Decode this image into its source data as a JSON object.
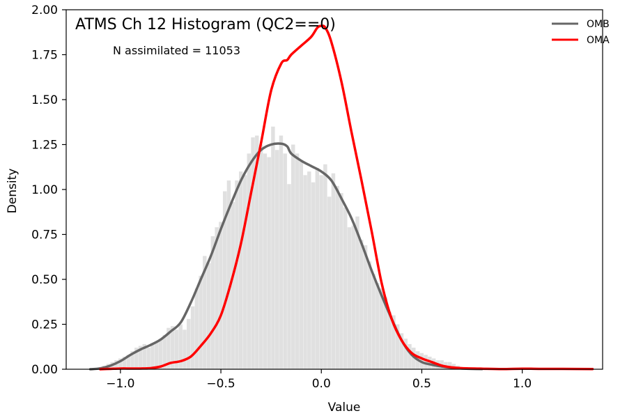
{
  "chart_data": {
    "type": "area",
    "title": "ATMS Ch 12 Histogram (QC2==0)",
    "annotation": "N assimilated = 11053",
    "xlabel": "Value",
    "ylabel": "Density",
    "xlim": [
      -1.27,
      1.4
    ],
    "ylim": [
      0,
      2.0
    ],
    "xticks": [
      -1.0,
      -0.5,
      0.0,
      0.5,
      1.0
    ],
    "xtick_labels": [
      "−1.0",
      "−0.5",
      "0.0",
      "0.5",
      "1.0"
    ],
    "yticks": [
      0,
      0.25,
      0.5,
      0.75,
      1.0,
      1.25,
      1.5,
      1.75,
      2.0
    ],
    "ytick_labels": [
      "0.00",
      "0.25",
      "0.50",
      "0.75",
      "1.00",
      "1.25",
      "1.50",
      "1.75",
      "2.00"
    ],
    "grid": false,
    "legend_position": "top-right",
    "histogram": {
      "color": "#e0e0e0",
      "bin_width": 0.02,
      "x": [
        -1.1,
        -1.08,
        -1.06,
        -1.04,
        -1.02,
        -1.0,
        -0.98,
        -0.96,
        -0.94,
        -0.92,
        -0.9,
        -0.88,
        -0.86,
        -0.84,
        -0.82,
        -0.8,
        -0.78,
        -0.76,
        -0.74,
        -0.72,
        -0.7,
        -0.68,
        -0.66,
        -0.64,
        -0.62,
        -0.6,
        -0.58,
        -0.56,
        -0.54,
        -0.52,
        -0.5,
        -0.48,
        -0.46,
        -0.44,
        -0.42,
        -0.4,
        -0.38,
        -0.36,
        -0.34,
        -0.32,
        -0.3,
        -0.28,
        -0.26,
        -0.24,
        -0.22,
        -0.2,
        -0.18,
        -0.16,
        -0.14,
        -0.12,
        -0.1,
        -0.08,
        -0.06,
        -0.04,
        -0.02,
        0.0,
        0.02,
        0.04,
        0.06,
        0.08,
        0.1,
        0.12,
        0.14,
        0.16,
        0.18,
        0.2,
        0.22,
        0.24,
        0.26,
        0.28,
        0.3,
        0.32,
        0.34,
        0.36,
        0.38,
        0.4,
        0.42,
        0.44,
        0.46,
        0.48,
        0.5,
        0.52,
        0.54,
        0.56,
        0.58,
        0.6,
        0.62,
        0.64,
        0.66,
        0.68,
        0.7
      ],
      "values": [
        0.01,
        0.02,
        0.03,
        0.04,
        0.05,
        0.06,
        0.07,
        0.08,
        0.1,
        0.12,
        0.13,
        0.14,
        0.12,
        0.14,
        0.15,
        0.17,
        0.19,
        0.23,
        0.24,
        0.22,
        0.25,
        0.22,
        0.28,
        0.35,
        0.45,
        0.52,
        0.63,
        0.59,
        0.74,
        0.79,
        0.82,
        0.99,
        1.05,
        0.93,
        1.05,
        1.1,
        1.08,
        1.2,
        1.29,
        1.3,
        1.25,
        1.2,
        1.18,
        1.35,
        1.22,
        1.3,
        1.2,
        1.03,
        1.25,
        1.2,
        1.16,
        1.08,
        1.1,
        1.04,
        1.12,
        1.08,
        1.14,
        0.96,
        1.09,
        1.02,
        0.98,
        0.9,
        0.79,
        0.8,
        0.85,
        0.72,
        0.69,
        0.6,
        0.53,
        0.48,
        0.45,
        0.4,
        0.32,
        0.3,
        0.25,
        0.2,
        0.17,
        0.14,
        0.12,
        0.1,
        0.09,
        0.08,
        0.07,
        0.06,
        0.05,
        0.05,
        0.04,
        0.04,
        0.03,
        0.02,
        0.01
      ]
    },
    "series": [
      {
        "name": "OMB",
        "color": "#666666",
        "x": [
          -1.15,
          -1.1,
          -1.05,
          -1.0,
          -0.95,
          -0.9,
          -0.85,
          -0.8,
          -0.75,
          -0.7,
          -0.65,
          -0.6,
          -0.55,
          -0.5,
          -0.45,
          -0.4,
          -0.35,
          -0.3,
          -0.25,
          -0.2,
          -0.17,
          -0.15,
          -0.1,
          -0.05,
          0.0,
          0.05,
          0.1,
          0.15,
          0.2,
          0.25,
          0.3,
          0.35,
          0.4,
          0.45,
          0.5,
          0.55,
          0.6,
          0.65,
          0.7,
          0.75,
          0.8
        ],
        "values": [
          0.0,
          0.005,
          0.02,
          0.045,
          0.08,
          0.11,
          0.135,
          0.165,
          0.21,
          0.26,
          0.37,
          0.5,
          0.63,
          0.78,
          0.92,
          1.05,
          1.15,
          1.22,
          1.25,
          1.255,
          1.24,
          1.2,
          1.16,
          1.13,
          1.1,
          1.05,
          0.95,
          0.84,
          0.7,
          0.55,
          0.41,
          0.28,
          0.16,
          0.08,
          0.04,
          0.025,
          0.015,
          0.008,
          0.004,
          0.002,
          0.001
        ]
      },
      {
        "name": "OMA",
        "color": "#ff0000",
        "x": [
          -1.1,
          -1.05,
          -1.0,
          -0.95,
          -0.9,
          -0.85,
          -0.8,
          -0.75,
          -0.7,
          -0.65,
          -0.6,
          -0.55,
          -0.5,
          -0.45,
          -0.4,
          -0.35,
          -0.3,
          -0.25,
          -0.2,
          -0.17,
          -0.15,
          -0.1,
          -0.05,
          -0.02,
          0.0,
          0.02,
          0.05,
          0.1,
          0.15,
          0.2,
          0.25,
          0.3,
          0.35,
          0.4,
          0.45,
          0.5,
          0.55,
          0.6,
          0.65,
          0.7,
          0.8,
          0.9,
          1.0,
          1.1,
          1.2,
          1.35
        ],
        "values": [
          0.0,
          0.002,
          0.004,
          0.004,
          0.004,
          0.006,
          0.015,
          0.035,
          0.045,
          0.07,
          0.13,
          0.2,
          0.3,
          0.48,
          0.7,
          0.98,
          1.26,
          1.55,
          1.7,
          1.72,
          1.75,
          1.8,
          1.85,
          1.9,
          1.91,
          1.9,
          1.82,
          1.6,
          1.32,
          1.05,
          0.77,
          0.48,
          0.28,
          0.16,
          0.09,
          0.06,
          0.04,
          0.02,
          0.01,
          0.006,
          0.003,
          0.001,
          0.003,
          0.002,
          0.002,
          0.001
        ]
      }
    ]
  }
}
